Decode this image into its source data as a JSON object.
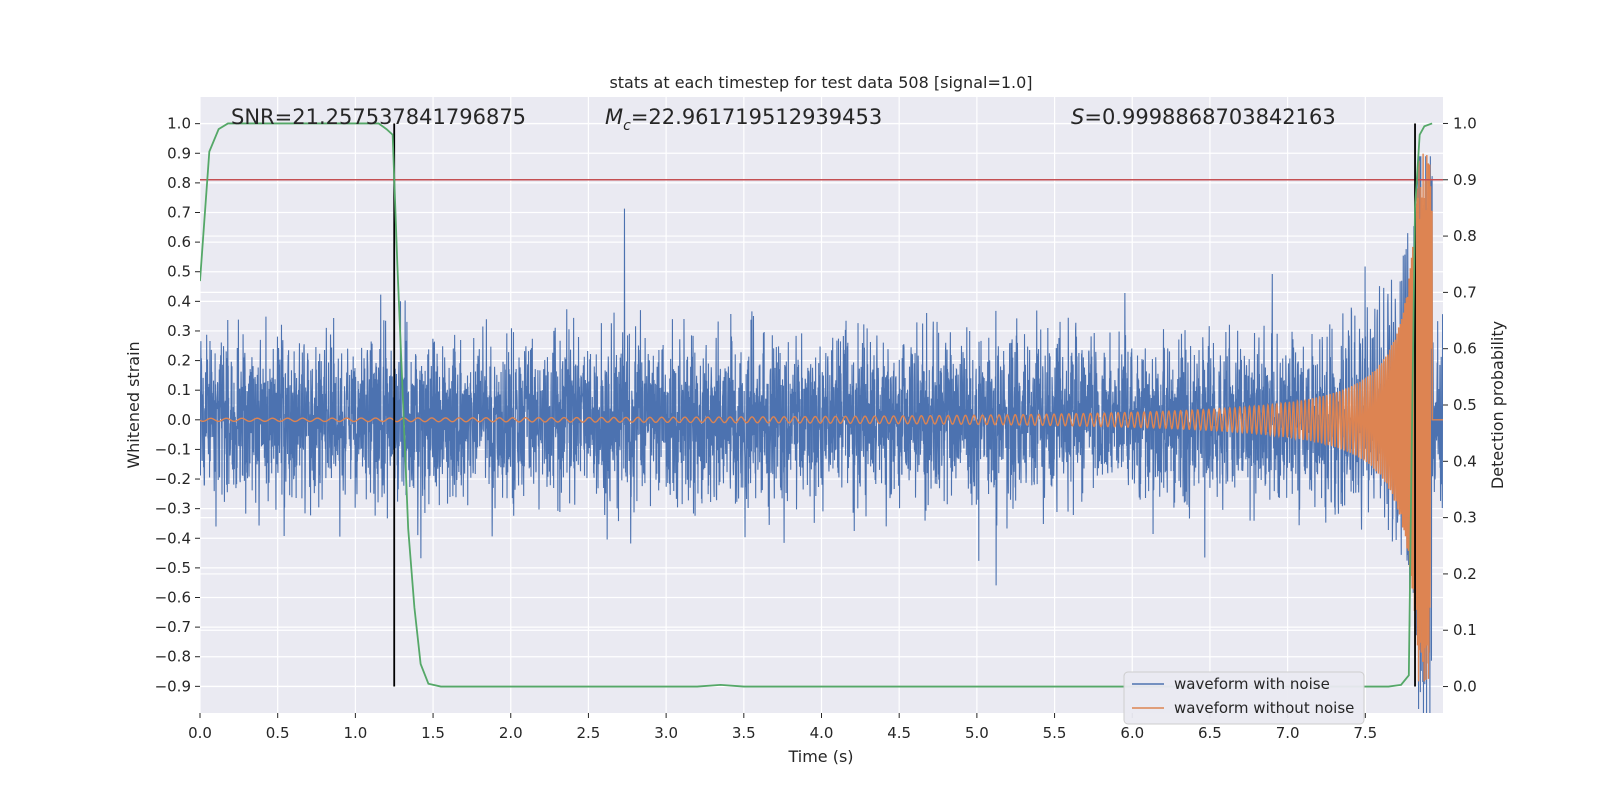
{
  "chart_data": {
    "type": "line",
    "title": "stats at each timestep for test data 508 [signal=1.0]",
    "xlabel": "Time (s)",
    "ylabel": "Whitened strain",
    "y2label": "Detection probability",
    "xlim": [
      0.0,
      8.0
    ],
    "ylim": [
      -0.99,
      1.09
    ],
    "y2lim": [
      -0.047,
      1.047
    ],
    "xticks": [
      "0.0",
      "0.5",
      "1.0",
      "1.5",
      "2.0",
      "2.5",
      "3.0",
      "3.5",
      "4.0",
      "4.5",
      "5.0",
      "5.5",
      "6.0",
      "6.5",
      "7.0",
      "7.5"
    ],
    "yticks": [
      "1.0",
      "0.9",
      "0.8",
      "0.7",
      "0.6",
      "0.5",
      "0.4",
      "0.3",
      "0.2",
      "0.1",
      "0.0",
      "−0.1",
      "−0.2",
      "−0.3",
      "−0.4",
      "−0.5",
      "−0.6",
      "−0.7",
      "−0.8",
      "−0.9"
    ],
    "y2ticks": [
      "1.0",
      "0.9",
      "0.8",
      "0.7",
      "0.6",
      "0.5",
      "0.4",
      "0.3",
      "0.2",
      "0.1",
      "0.0"
    ],
    "grid": true,
    "legend_position": "lower-right",
    "annotations": {
      "snr": "SNR=21.257537841796875",
      "mc_prefix": "M",
      "mc_sub": "c",
      "mc_value": "=22.961719512939453",
      "s_prefix": "S",
      "s_value": "=0.9998868703842163"
    },
    "series": [
      {
        "name": "waveform with noise",
        "color": "#4c72b0",
        "noise_band": 0.32,
        "peak_max": 0.89,
        "peak_min": -0.86
      },
      {
        "name": "waveform without noise",
        "color": "#dd8452",
        "chirp_start_amp": 0.005,
        "chirp_end_amp": 0.9,
        "merger_time": 7.93
      },
      {
        "name": "",
        "color": "#55a868",
        "axis": "y2",
        "x": [
          0.0,
          0.06,
          0.12,
          0.18,
          0.25,
          0.5,
          0.75,
          1.0,
          1.15,
          1.2,
          1.24,
          1.27,
          1.3,
          1.34,
          1.38,
          1.42,
          1.47,
          1.55,
          2.0,
          3.0,
          3.2,
          3.35,
          3.5,
          4.0,
          5.0,
          6.0,
          7.0,
          7.65,
          7.73,
          7.78,
          7.8,
          7.82,
          7.85,
          7.88,
          7.93
        ],
        "values": [
          0.72,
          0.95,
          0.99,
          1.0,
          1.0,
          1.0,
          1.0,
          1.0,
          1.0,
          0.99,
          0.98,
          0.75,
          0.55,
          0.28,
          0.14,
          0.04,
          0.005,
          0.0,
          0.0,
          0.0,
          0.0,
          0.003,
          0.0,
          0.0,
          0.0,
          0.0,
          0.0,
          0.0,
          0.003,
          0.02,
          0.45,
          0.85,
          0.98,
          0.995,
          1.0
        ]
      }
    ],
    "threshold_line": {
      "color": "#c44e52",
      "y2_value": 0.9
    },
    "vertical_markers": [
      1.25,
      7.82
    ],
    "vertical_marker_color": "#000000"
  }
}
